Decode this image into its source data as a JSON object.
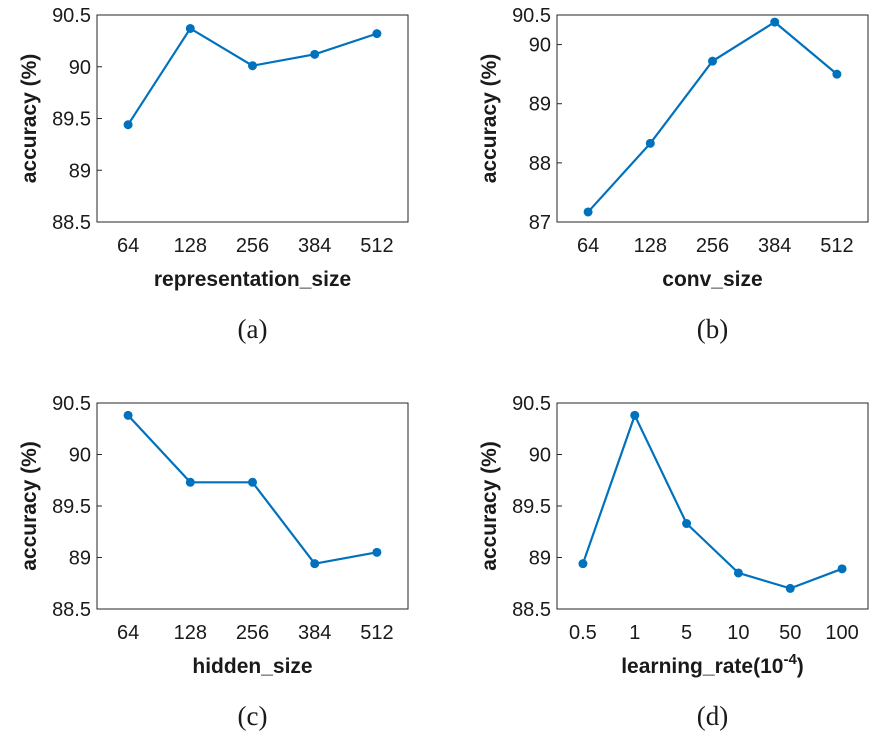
{
  "chart_data": [
    {
      "type": "line",
      "caption": "(a)",
      "x_label": "representation_size",
      "y_label": "accuracy (%)",
      "categories": [
        "64",
        "128",
        "256",
        "384",
        "512"
      ],
      "series": [
        {
          "color": "#0072bd",
          "values": [
            89.44,
            90.37,
            90.01,
            90.12,
            90.32
          ]
        }
      ],
      "ylim": [
        88.5,
        90.5
      ],
      "yticks": [
        88.5,
        89,
        89.5,
        90,
        90.5
      ]
    },
    {
      "type": "line",
      "caption": "(b)",
      "x_label": "conv_size",
      "y_label": "accuracy (%)",
      "categories": [
        "64",
        "128",
        "256",
        "384",
        "512"
      ],
      "series": [
        {
          "color": "#0072bd",
          "values": [
            87.17,
            88.33,
            89.72,
            90.38,
            89.5
          ]
        }
      ],
      "ylim": [
        87,
        90.5
      ],
      "yticks": [
        87,
        88,
        89,
        90,
        90.5
      ]
    },
    {
      "type": "line",
      "caption": "(c)",
      "x_label": "hidden_size",
      "y_label": "accuracy (%)",
      "categories": [
        "64",
        "128",
        "256",
        "384",
        "512"
      ],
      "series": [
        {
          "color": "#0072bd",
          "values": [
            90.38,
            89.73,
            89.73,
            88.94,
            89.05
          ]
        }
      ],
      "ylim": [
        88.5,
        90.5
      ],
      "yticks": [
        88.5,
        89,
        89.5,
        90,
        90.5
      ]
    },
    {
      "type": "line",
      "caption": "(d)",
      "x_label": {
        "text": "learning_rate(10",
        "superscript": "-4",
        "suffix": ")"
      },
      "y_label": "accuracy (%)",
      "categories": [
        "0.5",
        "1",
        "5",
        "10",
        "50",
        "100"
      ],
      "series": [
        {
          "color": "#0072bd",
          "values": [
            88.94,
            90.38,
            89.33,
            88.85,
            88.7,
            88.89
          ]
        }
      ],
      "ylim": [
        88.5,
        90.5
      ],
      "yticks": [
        88.5,
        89,
        89.5,
        90,
        90.5
      ]
    }
  ]
}
